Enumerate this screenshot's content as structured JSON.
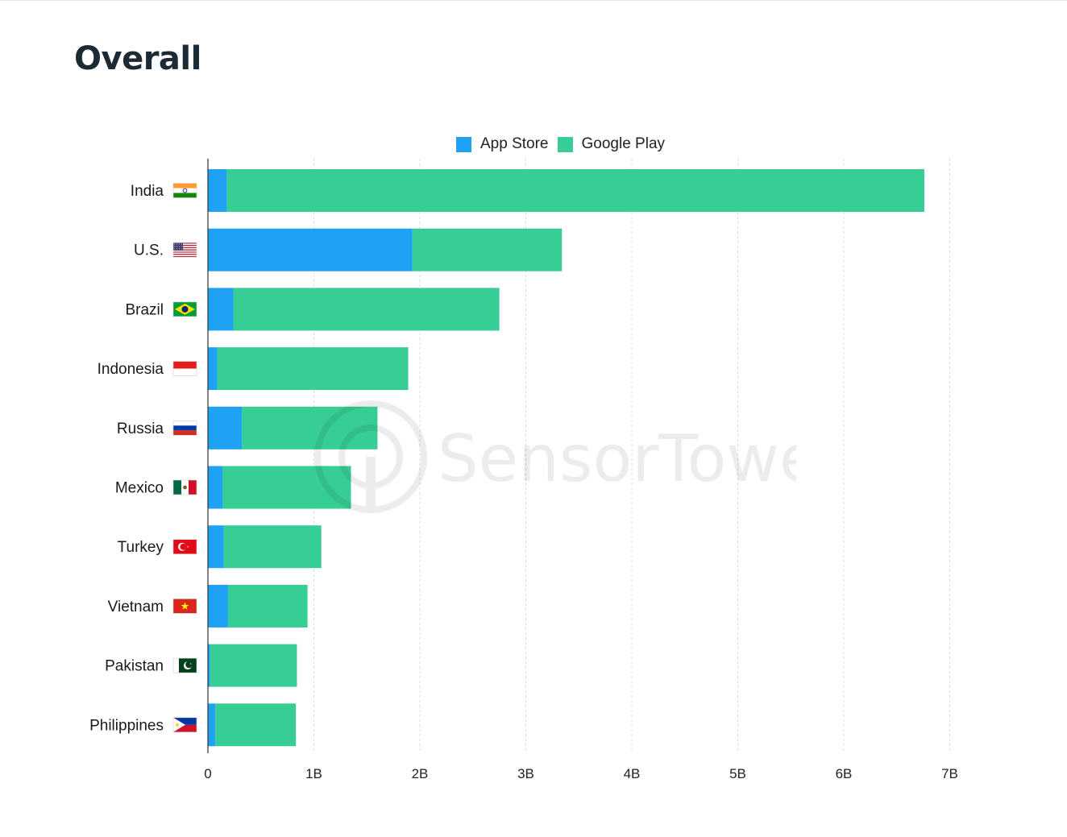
{
  "page": {
    "title": "Overall"
  },
  "watermark": {
    "text": "SensorTower"
  },
  "chart_data": {
    "type": "bar",
    "orientation": "horizontal",
    "stacked": true,
    "title": "Overall",
    "categories": [
      "India",
      "U.S.",
      "Brazil",
      "Indonesia",
      "Russia",
      "Mexico",
      "Turkey",
      "Vietnam",
      "Pakistan",
      "Philippines"
    ],
    "series": [
      {
        "name": "App Store",
        "color": "#1fa2f3",
        "values": [
          0.18,
          1.93,
          0.24,
          0.09,
          0.32,
          0.14,
          0.15,
          0.19,
          0.02,
          0.07
        ]
      },
      {
        "name": "Google Play",
        "color": "#37ce95",
        "values": [
          6.58,
          1.41,
          2.51,
          1.8,
          1.28,
          1.21,
          0.92,
          0.75,
          0.82,
          0.76
        ]
      }
    ],
    "xlim": [
      0,
      7
    ],
    "x_ticks": [
      0,
      1,
      2,
      3,
      4,
      5,
      6,
      7
    ],
    "x_tick_labels": [
      "0",
      "1B",
      "2B",
      "3B",
      "4B",
      "5B",
      "6B",
      "7B"
    ],
    "xlabel": "",
    "ylabel": "",
    "grid": "vertical dashed",
    "legend": "top-center",
    "category_icons": [
      "india-flag-icon",
      "us-flag-icon",
      "brazil-flag-icon",
      "indonesia-flag-icon",
      "russia-flag-icon",
      "mexico-flag-icon",
      "turkey-flag-icon",
      "vietnam-flag-icon",
      "pakistan-flag-icon",
      "philippines-flag-icon"
    ]
  }
}
